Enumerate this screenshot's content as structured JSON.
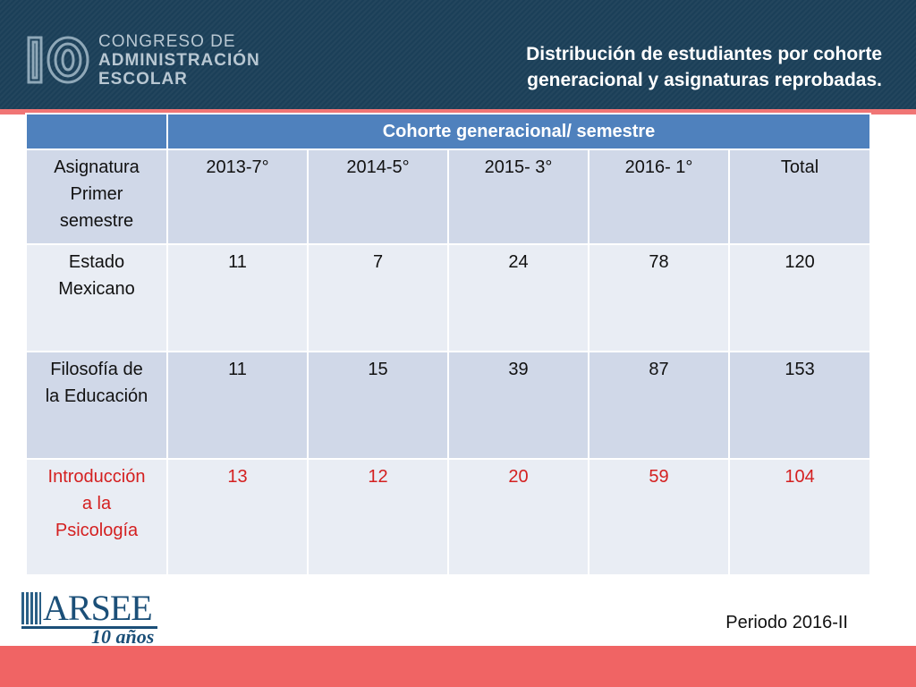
{
  "header": {
    "logo": {
      "mark": "10",
      "line1": "CONGRESO DE",
      "line2": "ADMINISTRACIÓN",
      "line3": "ESCOLAR"
    },
    "title_line1": "Distribución de estudiantes por cohorte",
    "title_line2": "generacional y asignaturas reprobadas."
  },
  "table": {
    "group_header": "Cohorte generacional/ semestre",
    "first_col_header": [
      "Asignatura",
      "Primer",
      "semestre"
    ],
    "columns": [
      "2013-7°",
      "2014-5°",
      "2015- 3°",
      "2016- 1°",
      "Total"
    ],
    "rows": [
      {
        "subject": [
          "Estado",
          "Mexicano"
        ],
        "values": [
          "11",
          "7",
          "24",
          "78",
          "120"
        ]
      },
      {
        "subject": [
          "Filosofía de",
          "la Educación"
        ],
        "values": [
          "11",
          "15",
          "39",
          "87",
          "153"
        ]
      },
      {
        "subject": [
          "Introducción",
          "a la",
          "Psicología"
        ],
        "values": [
          "13",
          "12",
          "20",
          "59",
          "104"
        ]
      }
    ]
  },
  "footer": {
    "brand": "ARSEE",
    "brand_tagline": "10 años",
    "periodo": "Periodo 2016-II"
  },
  "colors": {
    "header_bg": "#1b3f58",
    "table_header": "#4f81bd",
    "row_dark": "#d0d8e8",
    "row_light": "#e9edf4",
    "highlight_text": "#d42020",
    "footer_bar": "#f06464"
  }
}
